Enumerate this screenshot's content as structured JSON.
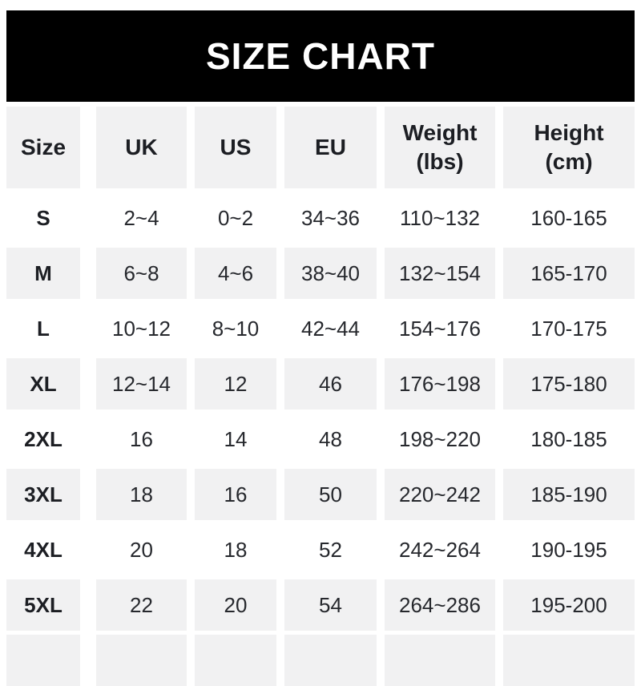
{
  "banner": {
    "title": "SIZE CHART"
  },
  "colors": {
    "banner_bg": "#000000",
    "banner_text": "#ffffff",
    "stripe_bg": "#f1f1f2",
    "page_bg": "#ffffff",
    "data_text": "#26282d",
    "heading_text": "#1c1e23"
  },
  "chart_data": {
    "type": "table",
    "title": "SIZE CHART",
    "layout": {
      "striped_rows": true,
      "stripe_pattern": "alternating white / light-gray starting white",
      "cropped_partial_row_at_bottom": true
    },
    "columns": [
      {
        "label": "Size"
      },
      {
        "label": "UK"
      },
      {
        "label": "US"
      },
      {
        "label": "EU"
      },
      {
        "label": "Weight",
        "sub": "(lbs)"
      },
      {
        "label": "Height",
        "sub": "(cm)"
      }
    ],
    "rows": [
      {
        "size": "S",
        "uk": "2~4",
        "us": "0~2",
        "eu": "34~36",
        "weight": "110~132",
        "height": "160-165"
      },
      {
        "size": "M",
        "uk": "6~8",
        "us": "4~6",
        "eu": "38~40",
        "weight": "132~154",
        "height": "165-170"
      },
      {
        "size": "L",
        "uk": "10~12",
        "us": "8~10",
        "eu": "42~44",
        "weight": "154~176",
        "height": "170-175"
      },
      {
        "size": "XL",
        "uk": "12~14",
        "us": "12",
        "eu": "46",
        "weight": "176~198",
        "height": "175-180"
      },
      {
        "size": "2XL",
        "uk": "16",
        "us": "14",
        "eu": "48",
        "weight": "198~220",
        "height": "180-185"
      },
      {
        "size": "3XL",
        "uk": "18",
        "us": "16",
        "eu": "50",
        "weight": "220~242",
        "height": "185-190"
      },
      {
        "size": "4XL",
        "uk": "20",
        "us": "18",
        "eu": "52",
        "weight": "242~264",
        "height": "190-195"
      },
      {
        "size": "5XL",
        "uk": "22",
        "us": "20",
        "eu": "54",
        "weight": "264~286",
        "height": "195-200"
      }
    ]
  }
}
